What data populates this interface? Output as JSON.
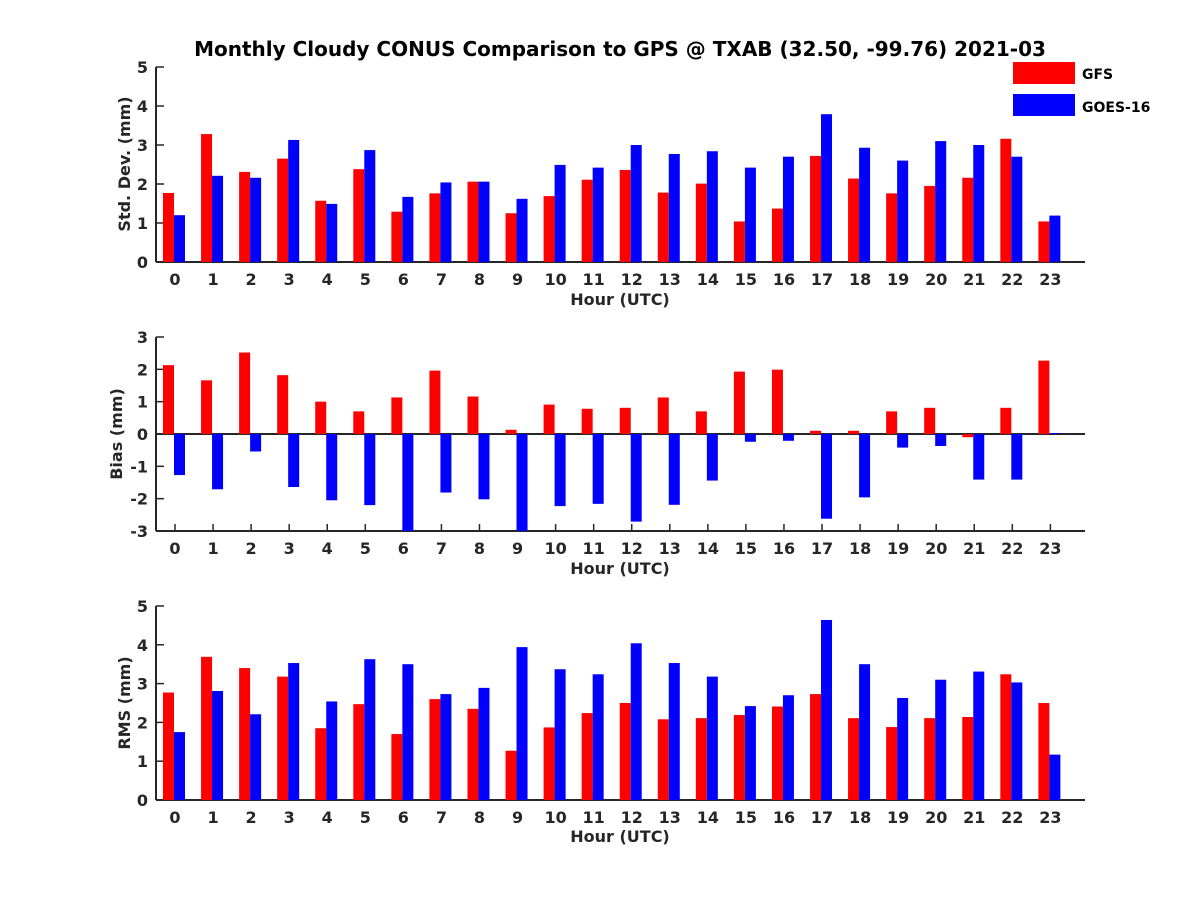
{
  "title": "Monthly Cloudy CONUS Comparison to GPS @ TXAB (32.50, -99.76) 2021-03",
  "colors": {
    "GFS": "#ff0000",
    "GOES-16": "#0000ff",
    "axis": "#262626"
  },
  "legend": {
    "placement": "top-right",
    "items": [
      "GFS",
      "GOES-16"
    ]
  },
  "chart_data": [
    {
      "type": "bar",
      "xlabel": "Hour (UTC)",
      "ylabel": "Std. Dev. (mm)",
      "ylim": [
        0,
        5
      ],
      "yticks": [
        0,
        1,
        2,
        3,
        4,
        5
      ],
      "categories": [
        "0",
        "1",
        "2",
        "3",
        "4",
        "5",
        "6",
        "7",
        "8",
        "9",
        "10",
        "11",
        "12",
        "13",
        "14",
        "15",
        "16",
        "17",
        "18",
        "19",
        "20",
        "21",
        "22",
        "23"
      ],
      "series": [
        {
          "name": "GFS",
          "values": [
            1.77,
            3.28,
            2.31,
            2.65,
            1.57,
            2.38,
            1.29,
            1.76,
            2.06,
            1.25,
            1.69,
            2.11,
            2.36,
            1.78,
            2.01,
            1.04,
            1.37,
            2.72,
            2.14,
            1.76,
            1.95,
            2.16,
            3.16,
            1.04
          ]
        },
        {
          "name": "GOES-16",
          "values": [
            1.2,
            2.21,
            2.16,
            3.13,
            1.49,
            2.87,
            1.67,
            2.04,
            2.06,
            1.62,
            2.49,
            2.42,
            3.0,
            2.77,
            2.84,
            2.42,
            2.7,
            3.79,
            2.93,
            2.6,
            3.1,
            3.0,
            2.7,
            1.19
          ]
        }
      ]
    },
    {
      "type": "bar",
      "xlabel": "Hour (UTC)",
      "ylabel": "Bias (mm)",
      "ylim": [
        -3,
        3
      ],
      "yticks": [
        -3,
        -2,
        -1,
        0,
        1,
        2,
        3
      ],
      "categories": [
        "0",
        "1",
        "2",
        "3",
        "4",
        "5",
        "6",
        "7",
        "8",
        "9",
        "10",
        "11",
        "12",
        "13",
        "14",
        "15",
        "16",
        "17",
        "18",
        "19",
        "20",
        "21",
        "22",
        "23"
      ],
      "series": [
        {
          "name": "GFS",
          "values": [
            2.13,
            1.66,
            2.52,
            1.82,
            1.0,
            0.7,
            1.13,
            1.96,
            1.16,
            0.13,
            0.91,
            0.78,
            0.81,
            1.13,
            0.7,
            1.93,
            1.99,
            0.1,
            0.1,
            0.7,
            0.81,
            -0.1,
            0.81,
            2.27
          ]
        },
        {
          "name": "GOES-16",
          "values": [
            -1.27,
            -1.71,
            -0.54,
            -1.64,
            -2.05,
            -2.2,
            -3.0,
            -1.81,
            -2.02,
            -3.0,
            -2.23,
            -2.16,
            -2.71,
            -2.19,
            -1.44,
            -0.24,
            -0.21,
            -2.62,
            -1.96,
            -0.42,
            -0.37,
            -1.41,
            -1.41,
            0.03
          ]
        }
      ]
    },
    {
      "type": "bar",
      "xlabel": "Hour (UTC)",
      "ylabel": "RMS (mm)",
      "ylim": [
        0,
        5
      ],
      "yticks": [
        0,
        1,
        2,
        3,
        4,
        5
      ],
      "categories": [
        "0",
        "1",
        "2",
        "3",
        "4",
        "5",
        "6",
        "7",
        "8",
        "9",
        "10",
        "11",
        "12",
        "13",
        "14",
        "15",
        "16",
        "17",
        "18",
        "19",
        "20",
        "21",
        "22",
        "23"
      ],
      "series": [
        {
          "name": "GFS",
          "values": [
            2.77,
            3.69,
            3.4,
            3.18,
            1.85,
            2.47,
            1.7,
            2.6,
            2.35,
            1.27,
            1.87,
            2.24,
            2.5,
            2.08,
            2.11,
            2.19,
            2.41,
            2.73,
            2.11,
            1.88,
            2.11,
            2.14,
            3.24,
            2.5
          ]
        },
        {
          "name": "GOES-16",
          "values": [
            1.75,
            2.81,
            2.21,
            3.53,
            2.54,
            3.63,
            3.5,
            2.73,
            2.89,
            3.94,
            3.37,
            3.24,
            4.04,
            3.53,
            3.18,
            2.42,
            2.7,
            4.64,
            3.5,
            2.63,
            3.1,
            3.31,
            3.03,
            1.17
          ]
        }
      ]
    }
  ]
}
